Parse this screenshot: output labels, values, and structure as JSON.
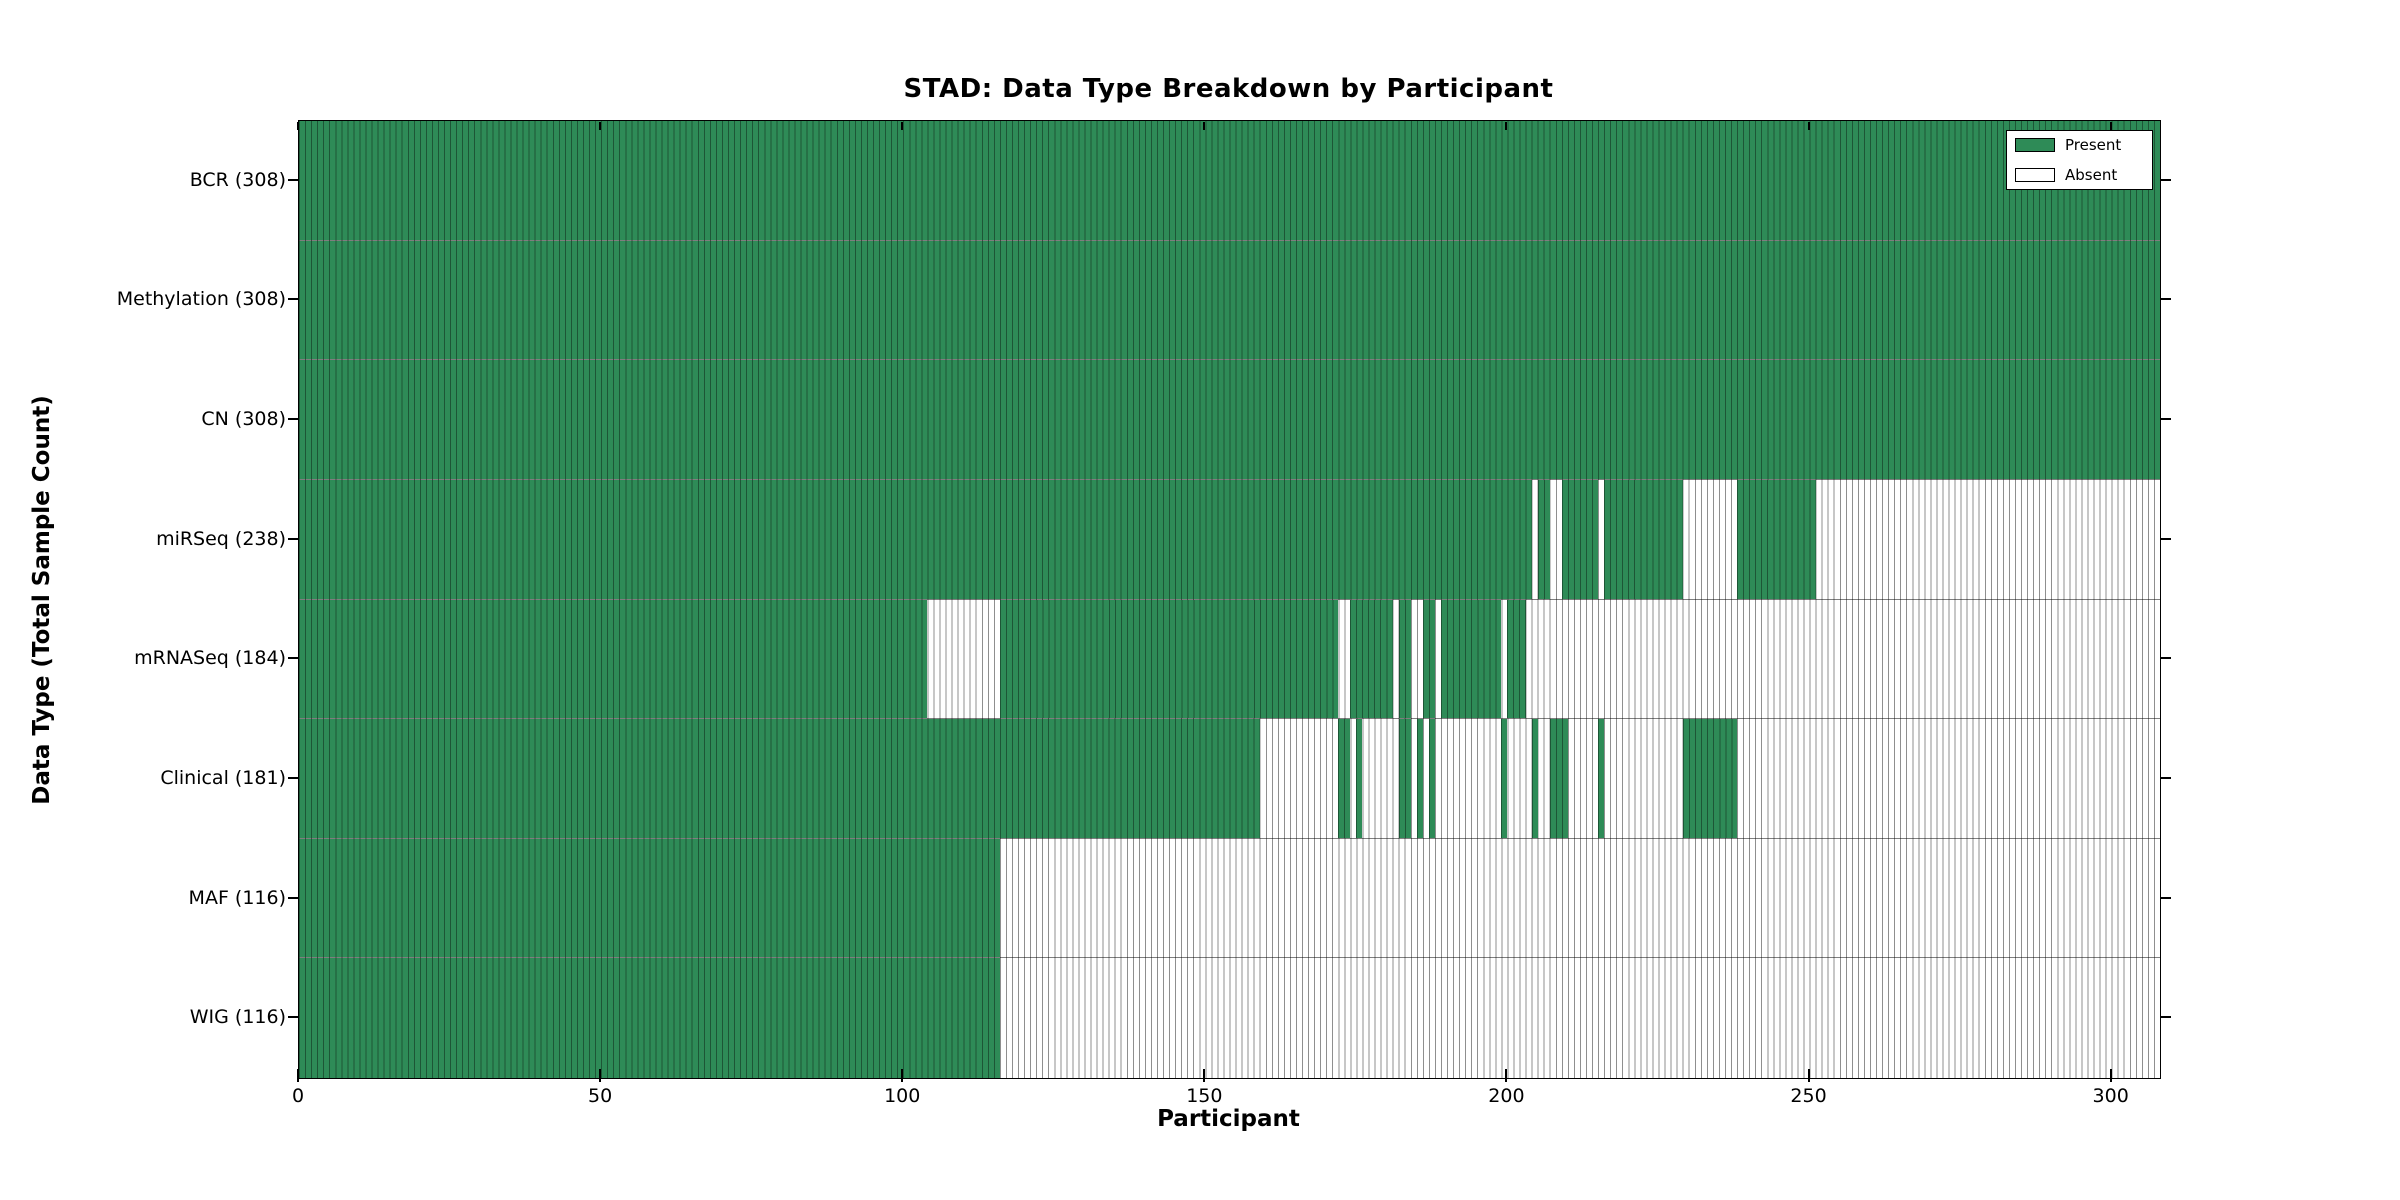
{
  "chart_data": {
    "type": "heatmap",
    "title": "STAD: Data Type Breakdown by Participant",
    "xlabel": "Participant",
    "ylabel": "Data Type (Total Sample Count)",
    "x_ticks": [
      0,
      50,
      100,
      150,
      200,
      250,
      300
    ],
    "x_max": 308,
    "grid": false,
    "legend_position": "upper right",
    "colors": {
      "present_fill": "#2E8B57",
      "present_edge": "rgba(0,0,0,0.38)",
      "absent_fill": "#ffffff",
      "absent_edge": "#8f8f8f",
      "spine": "#000000"
    },
    "legend": [
      {
        "label": "Present",
        "color": "#2E8B57"
      },
      {
        "label": "Absent",
        "color": "#ffffff"
      }
    ],
    "rows": [
      {
        "label": "BCR (308)",
        "data_type": "BCR",
        "total": 308,
        "present_ranges": [
          [
            0,
            307
          ]
        ]
      },
      {
        "label": "Methylation (308)",
        "data_type": "Methylation",
        "total": 308,
        "present_ranges": [
          [
            0,
            307
          ]
        ]
      },
      {
        "label": "CN (308)",
        "data_type": "CN",
        "total": 308,
        "present_ranges": [
          [
            0,
            307
          ]
        ]
      },
      {
        "label": "miRSeq (238)",
        "data_type": "miRSeq",
        "total": 238,
        "present_ranges": [
          [
            0,
            203
          ],
          [
            205,
            206
          ],
          [
            209,
            214
          ],
          [
            216,
            228
          ],
          [
            238,
            250
          ]
        ]
      },
      {
        "label": "mRNASeq (184)",
        "data_type": "mRNASeq",
        "total": 184,
        "present_ranges": [
          [
            0,
            103
          ],
          [
            116,
            171
          ],
          [
            174,
            180
          ],
          [
            182,
            183
          ],
          [
            186,
            187
          ],
          [
            189,
            198
          ],
          [
            200,
            202
          ]
        ]
      },
      {
        "label": "Clinical (181)",
        "data_type": "Clinical",
        "total": 181,
        "present_ranges": [
          [
            0,
            158
          ],
          [
            172,
            173
          ],
          [
            175,
            175
          ],
          [
            182,
            183
          ],
          [
            185,
            185
          ],
          [
            187,
            187
          ],
          [
            199,
            199
          ],
          [
            204,
            204
          ],
          [
            207,
            209
          ],
          [
            215,
            215
          ],
          [
            229,
            237
          ]
        ]
      },
      {
        "label": "MAF (116)",
        "data_type": "MAF",
        "total": 116,
        "present_ranges": [
          [
            0,
            115
          ]
        ]
      },
      {
        "label": "WIG (116)",
        "data_type": "WIG",
        "total": 116,
        "present_ranges": [
          [
            0,
            115
          ]
        ]
      }
    ]
  }
}
